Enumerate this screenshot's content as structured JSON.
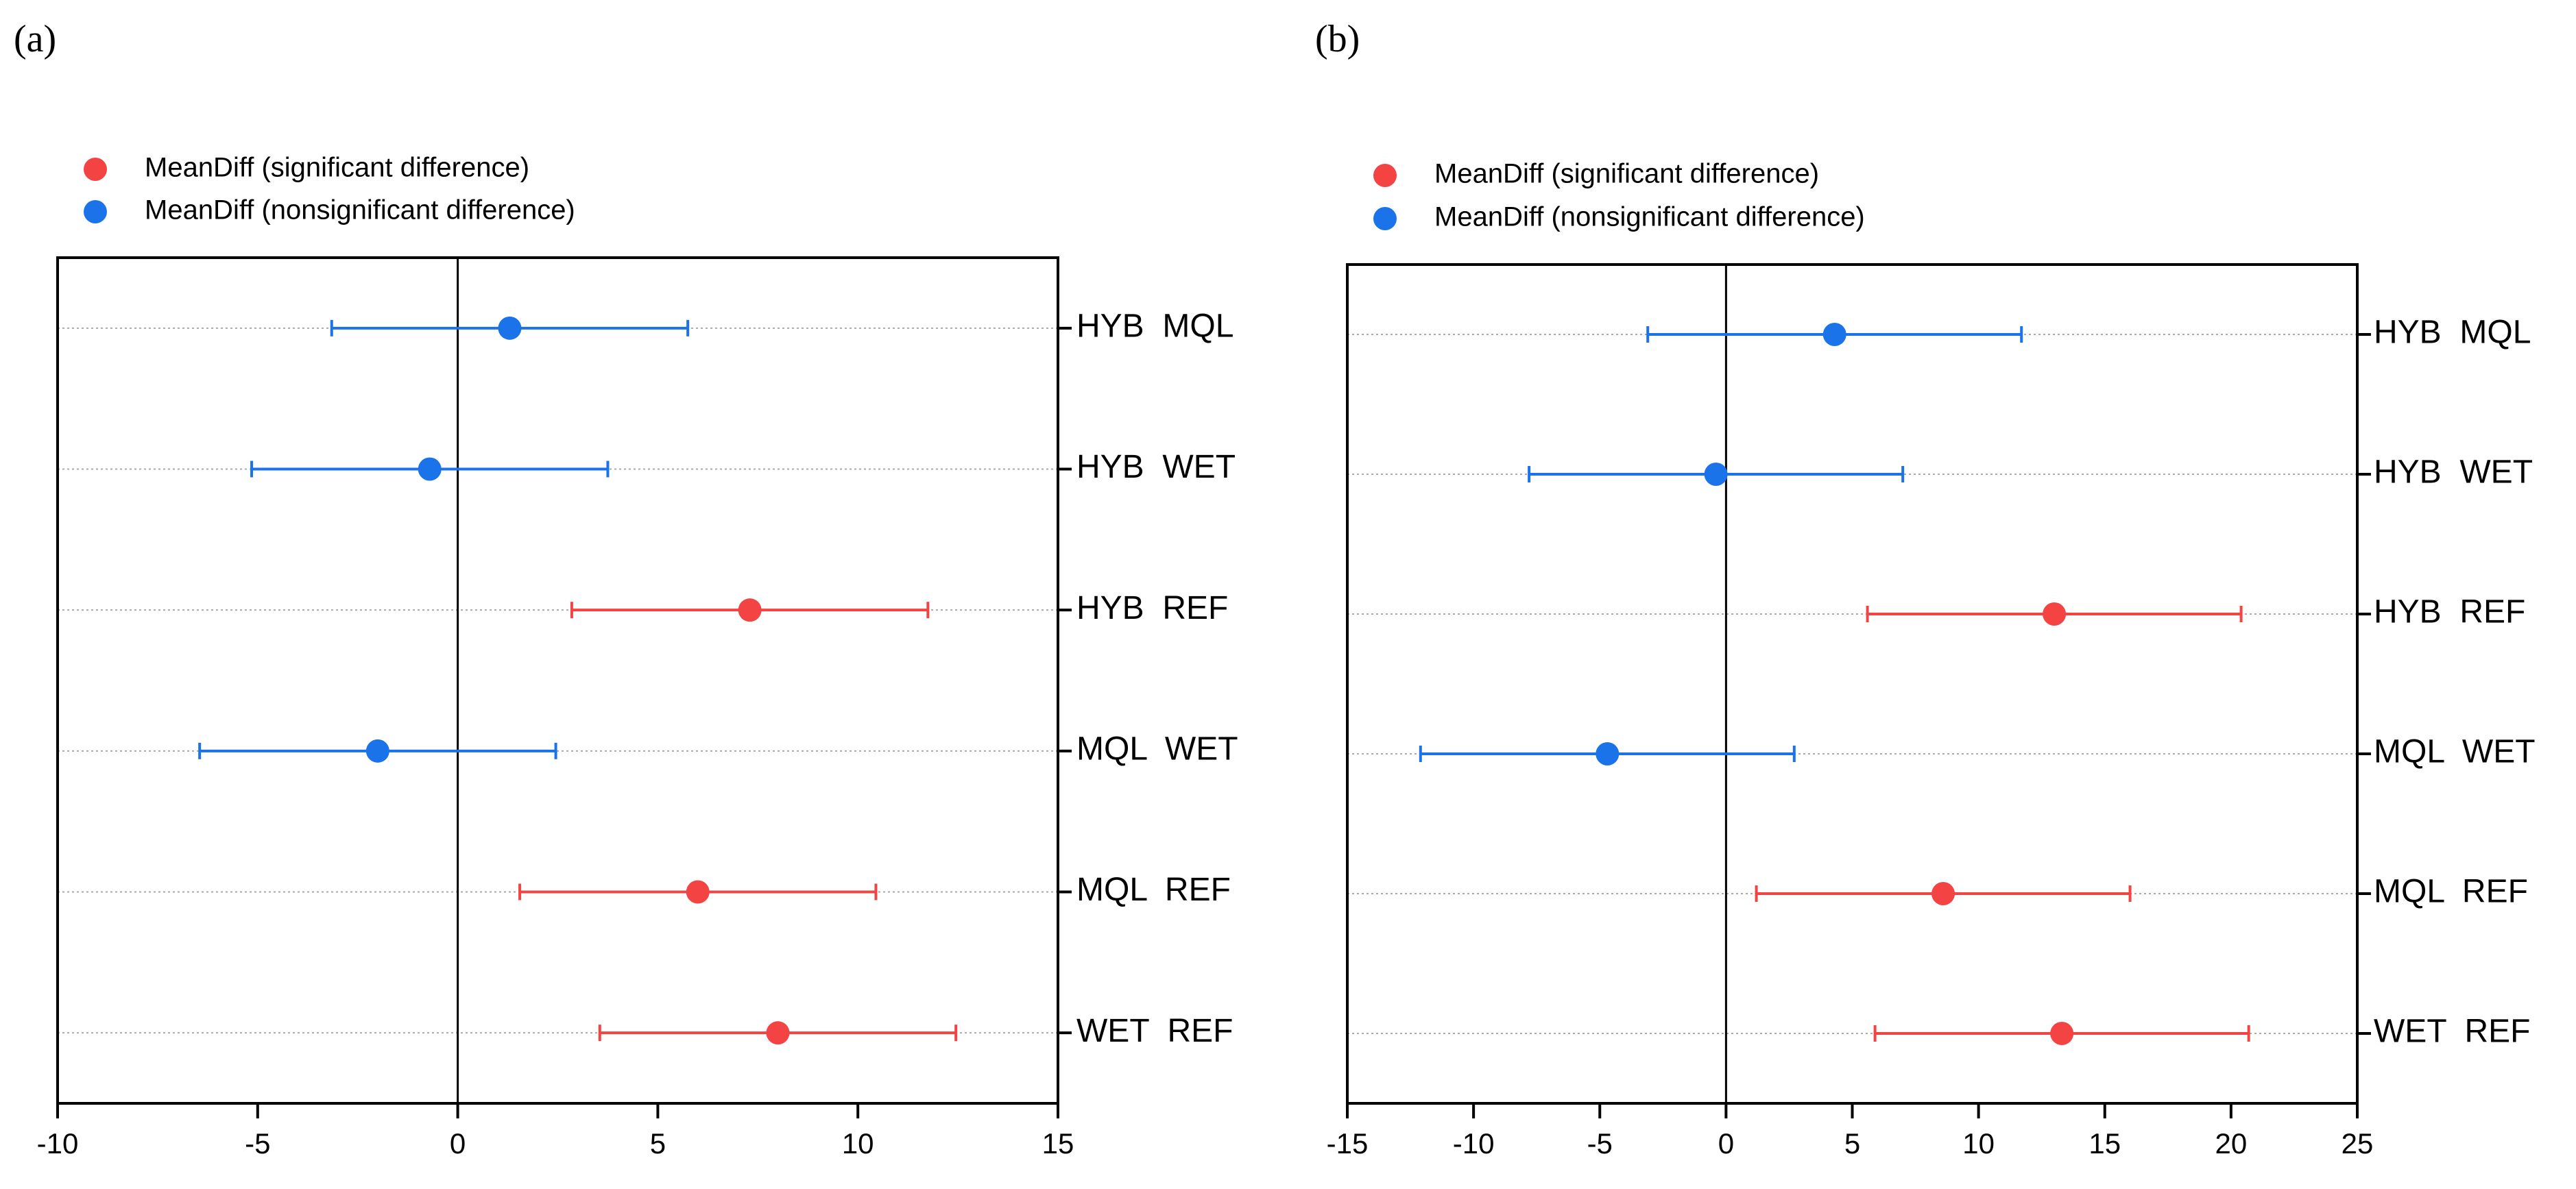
{
  "chart_data": [
    {
      "type": "forest",
      "panel_label": "(a)",
      "categories": [
        "HYB  MQL",
        "HYB  WET",
        "HYB  REF",
        "MQL  WET",
        "MQL  REF",
        "WET  REF"
      ],
      "series": [
        {
          "name": "MeanDiff (significant difference)",
          "color": "#f44343",
          "values": [
            null,
            null,
            7.3,
            null,
            6.0,
            8.0
          ],
          "errors": [
            null,
            null,
            4.45,
            null,
            4.45,
            4.45
          ]
        },
        {
          "name": "MeanDiff (nonsignificant difference)",
          "color": "#1a73e8",
          "values": [
            1.3,
            -0.7,
            null,
            -2.0,
            null,
            null
          ],
          "errors": [
            4.45,
            4.45,
            null,
            4.45,
            null,
            null
          ]
        }
      ],
      "xlim": [
        -10,
        15
      ],
      "xticks": [
        -10,
        -5,
        0,
        5,
        10,
        15
      ],
      "reference_line": 0,
      "grid": true
    },
    {
      "type": "forest",
      "panel_label": "(b)",
      "categories": [
        "HYB  MQL",
        "HYB  WET",
        "HYB  REF",
        "MQL  WET",
        "MQL  REF",
        "WET  REF"
      ],
      "series": [
        {
          "name": "MeanDiff (significant difference)",
          "color": "#f44343",
          "values": [
            null,
            null,
            13.0,
            null,
            8.6,
            13.3
          ],
          "errors": [
            null,
            null,
            7.4,
            null,
            7.4,
            7.4
          ]
        },
        {
          "name": "MeanDiff (nonsignificant difference)",
          "color": "#1a73e8",
          "values": [
            4.3,
            -0.4,
            null,
            -4.7,
            null,
            null
          ],
          "errors": [
            7.4,
            7.4,
            null,
            7.4,
            null,
            null
          ]
        }
      ],
      "xlim": [
        -15,
        25
      ],
      "xticks": [
        -15,
        -10,
        -5,
        0,
        5,
        10,
        15,
        20,
        25
      ],
      "reference_line": 0,
      "grid": true
    }
  ]
}
